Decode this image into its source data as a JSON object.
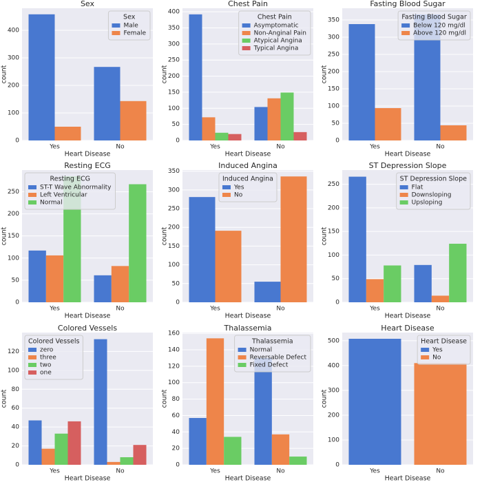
{
  "chart_data": [
    {
      "type": "bar",
      "title": "Sex",
      "xlabel": "Heart Disease",
      "ylabel": "count",
      "categories": [
        "Yes",
        "No"
      ],
      "legend_title": "Sex",
      "legend_loc": "upper right",
      "ylim": [
        0,
        480
      ],
      "yticks": [
        0,
        100,
        200,
        300,
        400
      ],
      "series": [
        {
          "name": "Male",
          "color": "#4878d0",
          "values": [
            458,
            267
          ]
        },
        {
          "name": "Female",
          "color": "#ee854a",
          "values": [
            50,
            143
          ]
        }
      ]
    },
    {
      "type": "bar",
      "title": "Chest Pain",
      "xlabel": "Heart Disease",
      "ylabel": "count",
      "categories": [
        "Yes",
        "No"
      ],
      "legend_title": "Chest Pain",
      "legend_loc": "upper right",
      "ylim": [
        0,
        411
      ],
      "yticks": [
        0,
        50,
        100,
        150,
        200,
        250,
        300,
        350,
        400
      ],
      "series": [
        {
          "name": "Asymptomatic",
          "color": "#4878d0",
          "values": [
            392,
            104
          ]
        },
        {
          "name": "Non-Anginal Pain",
          "color": "#ee854a",
          "values": [
            72,
            131
          ]
        },
        {
          "name": "Atypical Angina",
          "color": "#6acc64",
          "values": [
            24,
            149
          ]
        },
        {
          "name": "Typical Angina",
          "color": "#d65f5f",
          "values": [
            20,
            26
          ]
        }
      ]
    },
    {
      "type": "bar",
      "title": "Fasting Blood Sugar",
      "xlabel": "Heart Disease",
      "ylabel": "count",
      "categories": [
        "Yes",
        "No"
      ],
      "legend_title": "Fasting Blood Sugar",
      "legend_loc": "upper right",
      "ylim": [
        0,
        384
      ],
      "yticks": [
        0,
        50,
        100,
        150,
        200,
        250,
        300,
        350
      ],
      "series": [
        {
          "name": "Below 120 mg/dl",
          "color": "#4878d0",
          "values": [
            338,
            366
          ]
        },
        {
          "name": "Above 120 mg/dl",
          "color": "#ee854a",
          "values": [
            94,
            44
          ]
        }
      ]
    },
    {
      "type": "bar",
      "title": "Resting ECG",
      "xlabel": "Heart Disease",
      "ylabel": "count",
      "categories": [
        "Yes",
        "No"
      ],
      "legend_title": "Resting ECG",
      "legend_loc": "upper left",
      "ylim": [
        0,
        299
      ],
      "yticks": [
        0,
        50,
        100,
        150,
        200,
        250
      ],
      "series": [
        {
          "name": "ST-T Wave Abnormality",
          "color": "#4878d0",
          "values": [
            117,
            61
          ]
        },
        {
          "name": "Left Ventricular",
          "color": "#ee854a",
          "values": [
            106,
            82
          ]
        },
        {
          "name": "Normal",
          "color": "#6acc64",
          "values": [
            285,
            267
          ]
        }
      ]
    },
    {
      "type": "bar",
      "title": "Induced Angina",
      "xlabel": "Heart Disease",
      "ylabel": "count",
      "categories": [
        "Yes",
        "No"
      ],
      "legend_title": "Induced Angina",
      "legend_loc": "upper center",
      "ylim": [
        0,
        353
      ],
      "yticks": [
        0,
        50,
        100,
        150,
        200,
        250,
        300,
        350
      ],
      "series": [
        {
          "name": "Yes",
          "color": "#4878d0",
          "values": [
            281,
            55
          ]
        },
        {
          "name": "No",
          "color": "#ee854a",
          "values": [
            191,
            336
          ]
        }
      ]
    },
    {
      "type": "bar",
      "title": "ST Depression Slope",
      "xlabel": "Heart Disease",
      "ylabel": "count",
      "categories": [
        "Yes",
        "No"
      ],
      "legend_title": "ST Depression Slope",
      "legend_loc": "upper right",
      "ylim": [
        0,
        280
      ],
      "yticks": [
        0,
        50,
        100,
        150,
        200,
        250
      ],
      "series": [
        {
          "name": "Flat",
          "color": "#4878d0",
          "values": [
            266,
            79
          ]
        },
        {
          "name": "Downsloping",
          "color": "#ee854a",
          "values": [
            49,
            14
          ]
        },
        {
          "name": "Upsloping",
          "color": "#6acc64",
          "values": [
            78,
            124
          ]
        }
      ]
    },
    {
      "type": "bar",
      "title": "Colored Vessels",
      "xlabel": "Heart Disease",
      "ylabel": "count",
      "categories": [
        "Yes",
        "No"
      ],
      "legend_title": "Colored Vessels",
      "legend_loc": "upper left",
      "ylim": [
        0,
        140
      ],
      "yticks": [
        0,
        20,
        40,
        60,
        80,
        100,
        120
      ],
      "series": [
        {
          "name": "zero",
          "color": "#4878d0",
          "values": [
            47,
            133
          ]
        },
        {
          "name": "three",
          "color": "#ee854a",
          "values": [
            17,
            3
          ]
        },
        {
          "name": "two",
          "color": "#6acc64",
          "values": [
            33,
            8
          ]
        },
        {
          "name": "one",
          "color": "#d65f5f",
          "values": [
            46,
            21
          ]
        }
      ]
    },
    {
      "type": "bar",
      "title": "Thalassemia",
      "xlabel": "Heart Disease",
      "ylabel": "count",
      "categories": [
        "Yes",
        "No"
      ],
      "legend_title": "Thalassemia",
      "legend_loc": "upper right",
      "ylim": [
        0,
        161
      ],
      "yticks": [
        0,
        20,
        40,
        60,
        80,
        100,
        120,
        140,
        160
      ],
      "series": [
        {
          "name": "Normal",
          "color": "#4878d0",
          "values": [
            57,
            130
          ]
        },
        {
          "name": "Reversable Defect",
          "color": "#ee854a",
          "values": [
            154,
            37
          ]
        },
        {
          "name": "Fixed Defect",
          "color": "#6acc64",
          "values": [
            34,
            10
          ]
        }
      ]
    },
    {
      "type": "bar",
      "title": "Heart Disease",
      "xlabel": "Heart Disease",
      "ylabel": "count",
      "categories": [
        "Yes",
        "No"
      ],
      "legend_title": "Heart Disease",
      "legend_loc": "upper right",
      "ylim": [
        0,
        533
      ],
      "yticks": [
        0,
        100,
        200,
        300,
        400,
        500
      ],
      "series": [
        {
          "name": "Yes",
          "color": "#4878d0",
          "values": [
            508,
            null
          ]
        },
        {
          "name": "No",
          "color": "#ee854a",
          "values": [
            null,
            410
          ]
        }
      ],
      "hue_is_category": true
    }
  ]
}
